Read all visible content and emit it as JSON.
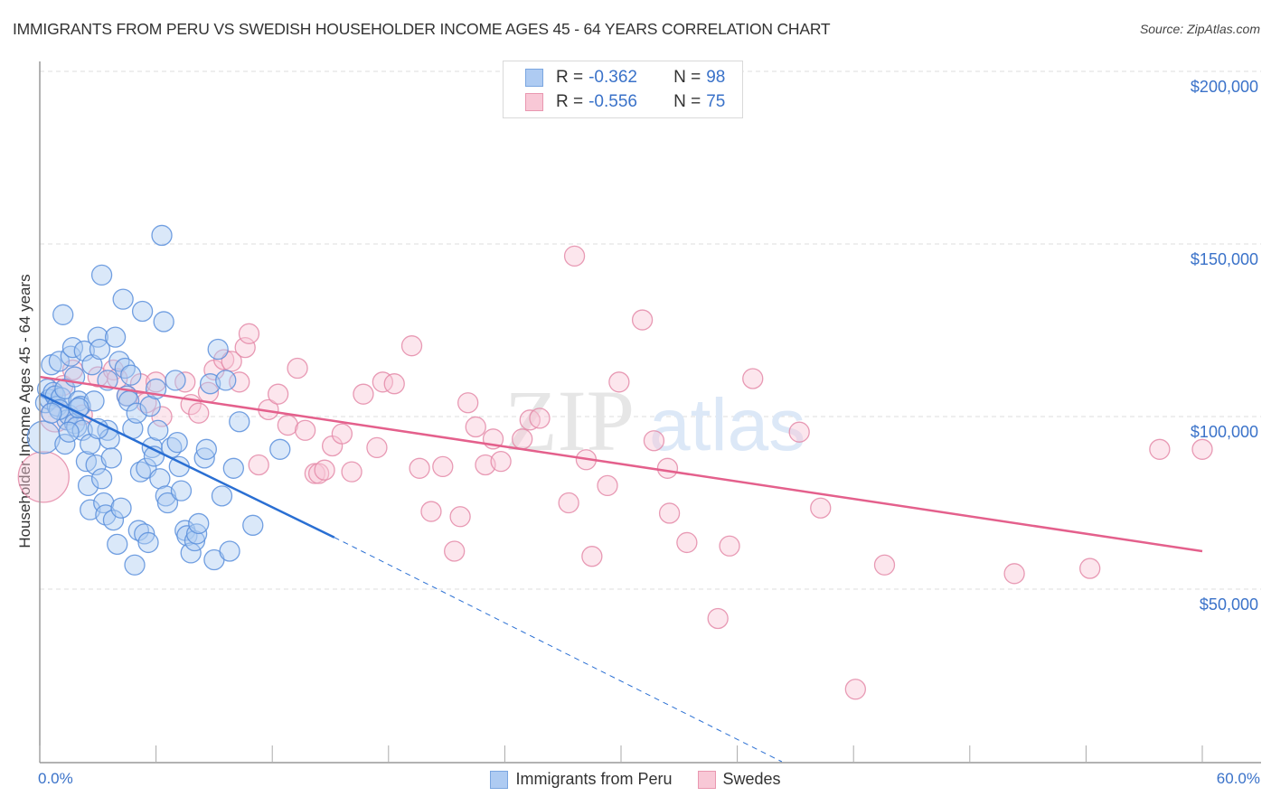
{
  "header": {
    "title": "IMMIGRANTS FROM PERU VS SWEDISH HOUSEHOLDER INCOME AGES 45 - 64 YEARS CORRELATION CHART",
    "source": "Source: ZipAtlas.com"
  },
  "watermark": {
    "zip": "ZIP",
    "atlas": "atlas"
  },
  "legend_top": [
    {
      "r_label": "R =",
      "r_value": "-0.362",
      "n_label": "N =",
      "n_value": "98",
      "color": "#aecbf2"
    },
    {
      "r_label": "R =",
      "r_value": "-0.556",
      "n_label": "N =",
      "n_value": "75",
      "color": "#f8bfd0"
    }
  ],
  "legend_bottom": [
    {
      "label": "Immigrants from Peru",
      "color": "#aecbf2",
      "border": "#7aa6e0"
    },
    {
      "label": "Swedes",
      "color": "#f8bfd0",
      "border": "#e997b0"
    }
  ],
  "axes": {
    "x_min_label": "0.0%",
    "x_max_label": "60.0%",
    "y_ticks": [
      "$200,000",
      "$150,000",
      "$100,000",
      "$50,000"
    ],
    "ylabel": "Householder Income Ages 45 - 64 years"
  },
  "colors": {
    "blue_fill": "#aecbf2",
    "blue_stroke": "#5b8fdc",
    "blue_line": "#2a6fd3",
    "pink_fill": "#f8c8d6",
    "pink_stroke": "#e48aa8",
    "pink_line": "#e4608c",
    "axis_text": "#3a72c9"
  },
  "chart_data": {
    "type": "scatter",
    "title": "IMMIGRANTS FROM PERU VS SWEDISH HOUSEHOLDER INCOME AGES 45 - 64 YEARS CORRELATION CHART",
    "xlabel": "",
    "ylabel": "Householder Income Ages 45 - 64 years",
    "xlim": [
      0,
      60
    ],
    "ylim": [
      0,
      210000
    ],
    "x_unit": "%",
    "y_ticks": [
      50000,
      100000,
      150000,
      200000
    ],
    "grid": true,
    "legend_position": "bottom",
    "series": [
      {
        "name": "Immigrants from Peru",
        "R": -0.362,
        "N": 98,
        "trend": {
          "x": [
            0,
            15.2
          ],
          "y": [
            106500,
            65000
          ],
          "extended_dashed_to": [
            38.3,
            0
          ]
        },
        "points": [
          [
            0.2,
            94000
          ],
          [
            0.3,
            104000
          ],
          [
            0.4,
            108000
          ],
          [
            0.5,
            105000
          ],
          [
            0.6,
            115000
          ],
          [
            0.7,
            107000
          ],
          [
            0.8,
            106000
          ],
          [
            0.9,
            103000
          ],
          [
            1.0,
            116000
          ],
          [
            1.1,
            105500
          ],
          [
            1.2,
            129500
          ],
          [
            1.3,
            108000
          ],
          [
            1.3,
            92000
          ],
          [
            1.4,
            99000
          ],
          [
            1.5,
            100500
          ],
          [
            1.6,
            117500
          ],
          [
            1.7,
            120000
          ],
          [
            1.8,
            98000
          ],
          [
            1.9,
            97000
          ],
          [
            2.0,
            104500
          ],
          [
            2.1,
            103000
          ],
          [
            2.2,
            96000
          ],
          [
            2.3,
            119000
          ],
          [
            2.4,
            87000
          ],
          [
            2.5,
            80000
          ],
          [
            2.6,
            73000
          ],
          [
            2.7,
            115000
          ],
          [
            2.8,
            104500
          ],
          [
            2.9,
            86000
          ],
          [
            3.0,
            123000
          ],
          [
            3.1,
            119500
          ],
          [
            3.2,
            141000
          ],
          [
            3.2,
            82000
          ],
          [
            3.3,
            75000
          ],
          [
            3.4,
            71500
          ],
          [
            3.5,
            110500
          ],
          [
            3.5,
            96000
          ],
          [
            3.6,
            93500
          ],
          [
            3.7,
            88000
          ],
          [
            3.8,
            70000
          ],
          [
            3.9,
            123000
          ],
          [
            4.0,
            63000
          ],
          [
            4.1,
            116000
          ],
          [
            4.2,
            73500
          ],
          [
            4.3,
            134000
          ],
          [
            4.4,
            114000
          ],
          [
            4.5,
            106000
          ],
          [
            4.6,
            104500
          ],
          [
            4.7,
            112000
          ],
          [
            4.8,
            96500
          ],
          [
            4.9,
            57000
          ],
          [
            5.0,
            101000
          ],
          [
            5.1,
            67000
          ],
          [
            5.2,
            84000
          ],
          [
            5.3,
            130500
          ],
          [
            5.4,
            66000
          ],
          [
            5.5,
            85000
          ],
          [
            5.6,
            63500
          ],
          [
            5.7,
            103000
          ],
          [
            5.8,
            91000
          ],
          [
            5.9,
            88500
          ],
          [
            6.0,
            108000
          ],
          [
            6.1,
            96000
          ],
          [
            6.2,
            82000
          ],
          [
            6.3,
            152500
          ],
          [
            6.4,
            127500
          ],
          [
            6.5,
            77000
          ],
          [
            6.6,
            75000
          ],
          [
            6.8,
            91000
          ],
          [
            7.0,
            110500
          ],
          [
            7.1,
            92500
          ],
          [
            7.2,
            85500
          ],
          [
            7.3,
            78500
          ],
          [
            7.5,
            67000
          ],
          [
            7.6,
            65500
          ],
          [
            7.8,
            60500
          ],
          [
            8.0,
            64000
          ],
          [
            8.1,
            66000
          ],
          [
            8.2,
            69000
          ],
          [
            8.5,
            88000
          ],
          [
            8.6,
            90500
          ],
          [
            8.8,
            109500
          ],
          [
            9.0,
            58500
          ],
          [
            9.2,
            119500
          ],
          [
            9.4,
            77000
          ],
          [
            9.6,
            110500
          ],
          [
            9.8,
            61000
          ],
          [
            10.0,
            85000
          ],
          [
            10.3,
            98500
          ],
          [
            11.0,
            68500
          ],
          [
            12.4,
            90500
          ],
          [
            1.0,
            102000
          ],
          [
            1.5,
            95500
          ],
          [
            2.0,
            102500
          ],
          [
            0.6,
            101000
          ],
          [
            1.8,
            111500
          ],
          [
            2.6,
            92000
          ],
          [
            3.0,
            96500
          ]
        ]
      },
      {
        "name": "Swedes",
        "R": -0.556,
        "N": 75,
        "trend": {
          "x": [
            0,
            60
          ],
          "y": [
            111500,
            61000
          ]
        },
        "points": [
          [
            0.2,
            82500
          ],
          [
            0.8,
            100000
          ],
          [
            1.2,
            109000
          ],
          [
            1.7,
            113500
          ],
          [
            2.2,
            100500
          ],
          [
            3.0,
            111500
          ],
          [
            3.8,
            113500
          ],
          [
            4.0,
            111000
          ],
          [
            4.5,
            106000
          ],
          [
            5.2,
            109500
          ],
          [
            5.5,
            104000
          ],
          [
            6.0,
            110000
          ],
          [
            6.3,
            100000
          ],
          [
            7.5,
            110000
          ],
          [
            7.8,
            103500
          ],
          [
            8.2,
            101000
          ],
          [
            8.7,
            107000
          ],
          [
            9.0,
            113500
          ],
          [
            9.5,
            116500
          ],
          [
            9.9,
            116000
          ],
          [
            10.3,
            110000
          ],
          [
            10.6,
            120000
          ],
          [
            10.8,
            124000
          ],
          [
            11.3,
            86000
          ],
          [
            11.8,
            102000
          ],
          [
            12.3,
            106500
          ],
          [
            12.8,
            97500
          ],
          [
            13.3,
            114000
          ],
          [
            13.7,
            96000
          ],
          [
            14.2,
            83500
          ],
          [
            14.4,
            83500
          ],
          [
            14.7,
            84500
          ],
          [
            15.1,
            91500
          ],
          [
            15.6,
            95000
          ],
          [
            16.1,
            84000
          ],
          [
            16.7,
            106500
          ],
          [
            17.4,
            91000
          ],
          [
            17.7,
            110000
          ],
          [
            18.3,
            109500
          ],
          [
            19.2,
            120500
          ],
          [
            19.6,
            85000
          ],
          [
            20.2,
            72500
          ],
          [
            20.8,
            85500
          ],
          [
            21.4,
            61000
          ],
          [
            21.7,
            71000
          ],
          [
            22.1,
            104000
          ],
          [
            22.5,
            97000
          ],
          [
            23.0,
            86000
          ],
          [
            23.4,
            93500
          ],
          [
            23.8,
            87000
          ],
          [
            24.9,
            93500
          ],
          [
            25.3,
            99000
          ],
          [
            25.8,
            99500
          ],
          [
            27.3,
            75000
          ],
          [
            27.6,
            146500
          ],
          [
            28.2,
            87500
          ],
          [
            28.5,
            59500
          ],
          [
            29.3,
            80000
          ],
          [
            29.9,
            110000
          ],
          [
            31.1,
            128000
          ],
          [
            31.7,
            93000
          ],
          [
            32.4,
            85000
          ],
          [
            32.5,
            72000
          ],
          [
            33.4,
            63500
          ],
          [
            35.0,
            41500
          ],
          [
            35.6,
            62500
          ],
          [
            36.8,
            111000
          ],
          [
            39.2,
            95500
          ],
          [
            40.3,
            73500
          ],
          [
            42.1,
            21000
          ],
          [
            43.6,
            57000
          ],
          [
            50.3,
            54500
          ],
          [
            54.2,
            56000
          ],
          [
            57.8,
            90500
          ],
          [
            60.0,
            90500
          ]
        ]
      }
    ]
  }
}
